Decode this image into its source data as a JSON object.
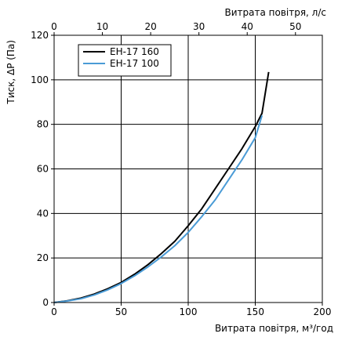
{
  "chart_data": {
    "type": "line",
    "xlabel": "Витрата повітря, м³/год",
    "ylabel": "Тиск, ΔP (Па)",
    "xlim": [
      0,
      200
    ],
    "ylim": [
      0,
      120
    ],
    "x_ticks": [
      "0",
      "50",
      "100",
      "150",
      "200"
    ],
    "y_ticks": [
      "0",
      "20",
      "40",
      "60",
      "80",
      "100",
      "120"
    ],
    "secondary_x_axis": {
      "label": "Витрата повітря, л/с",
      "lim": [
        0,
        55.56
      ],
      "ticks": [
        "0",
        "10",
        "20",
        "30",
        "40",
        "50"
      ]
    },
    "grid": true,
    "legend_position": "top-left",
    "series": [
      {
        "name": "ЕН-17 160",
        "color": "#000000",
        "x": [
          0,
          10,
          20,
          30,
          40,
          50,
          60,
          70,
          80,
          90,
          100,
          110,
          120,
          130,
          140,
          150,
          155,
          160
        ],
        "y": [
          0,
          0.8,
          2.0,
          3.8,
          6.2,
          9.0,
          12.7,
          17.0,
          22.0,
          27.5,
          34.5,
          42.0,
          51.0,
          60.0,
          69.0,
          79.0,
          85.0,
          103.5
        ]
      },
      {
        "name": "ЕН-17 100",
        "color": "#4a9bd6",
        "x": [
          0,
          10,
          20,
          30,
          40,
          50,
          60,
          70,
          80,
          90,
          100,
          110,
          120,
          130,
          140,
          150,
          155
        ],
        "y": [
          0,
          0.7,
          1.7,
          3.4,
          5.7,
          8.5,
          12.0,
          16.0,
          20.5,
          25.5,
          31.5,
          38.5,
          46.0,
          55.0,
          64.0,
          74.0,
          84.0
        ]
      }
    ]
  }
}
